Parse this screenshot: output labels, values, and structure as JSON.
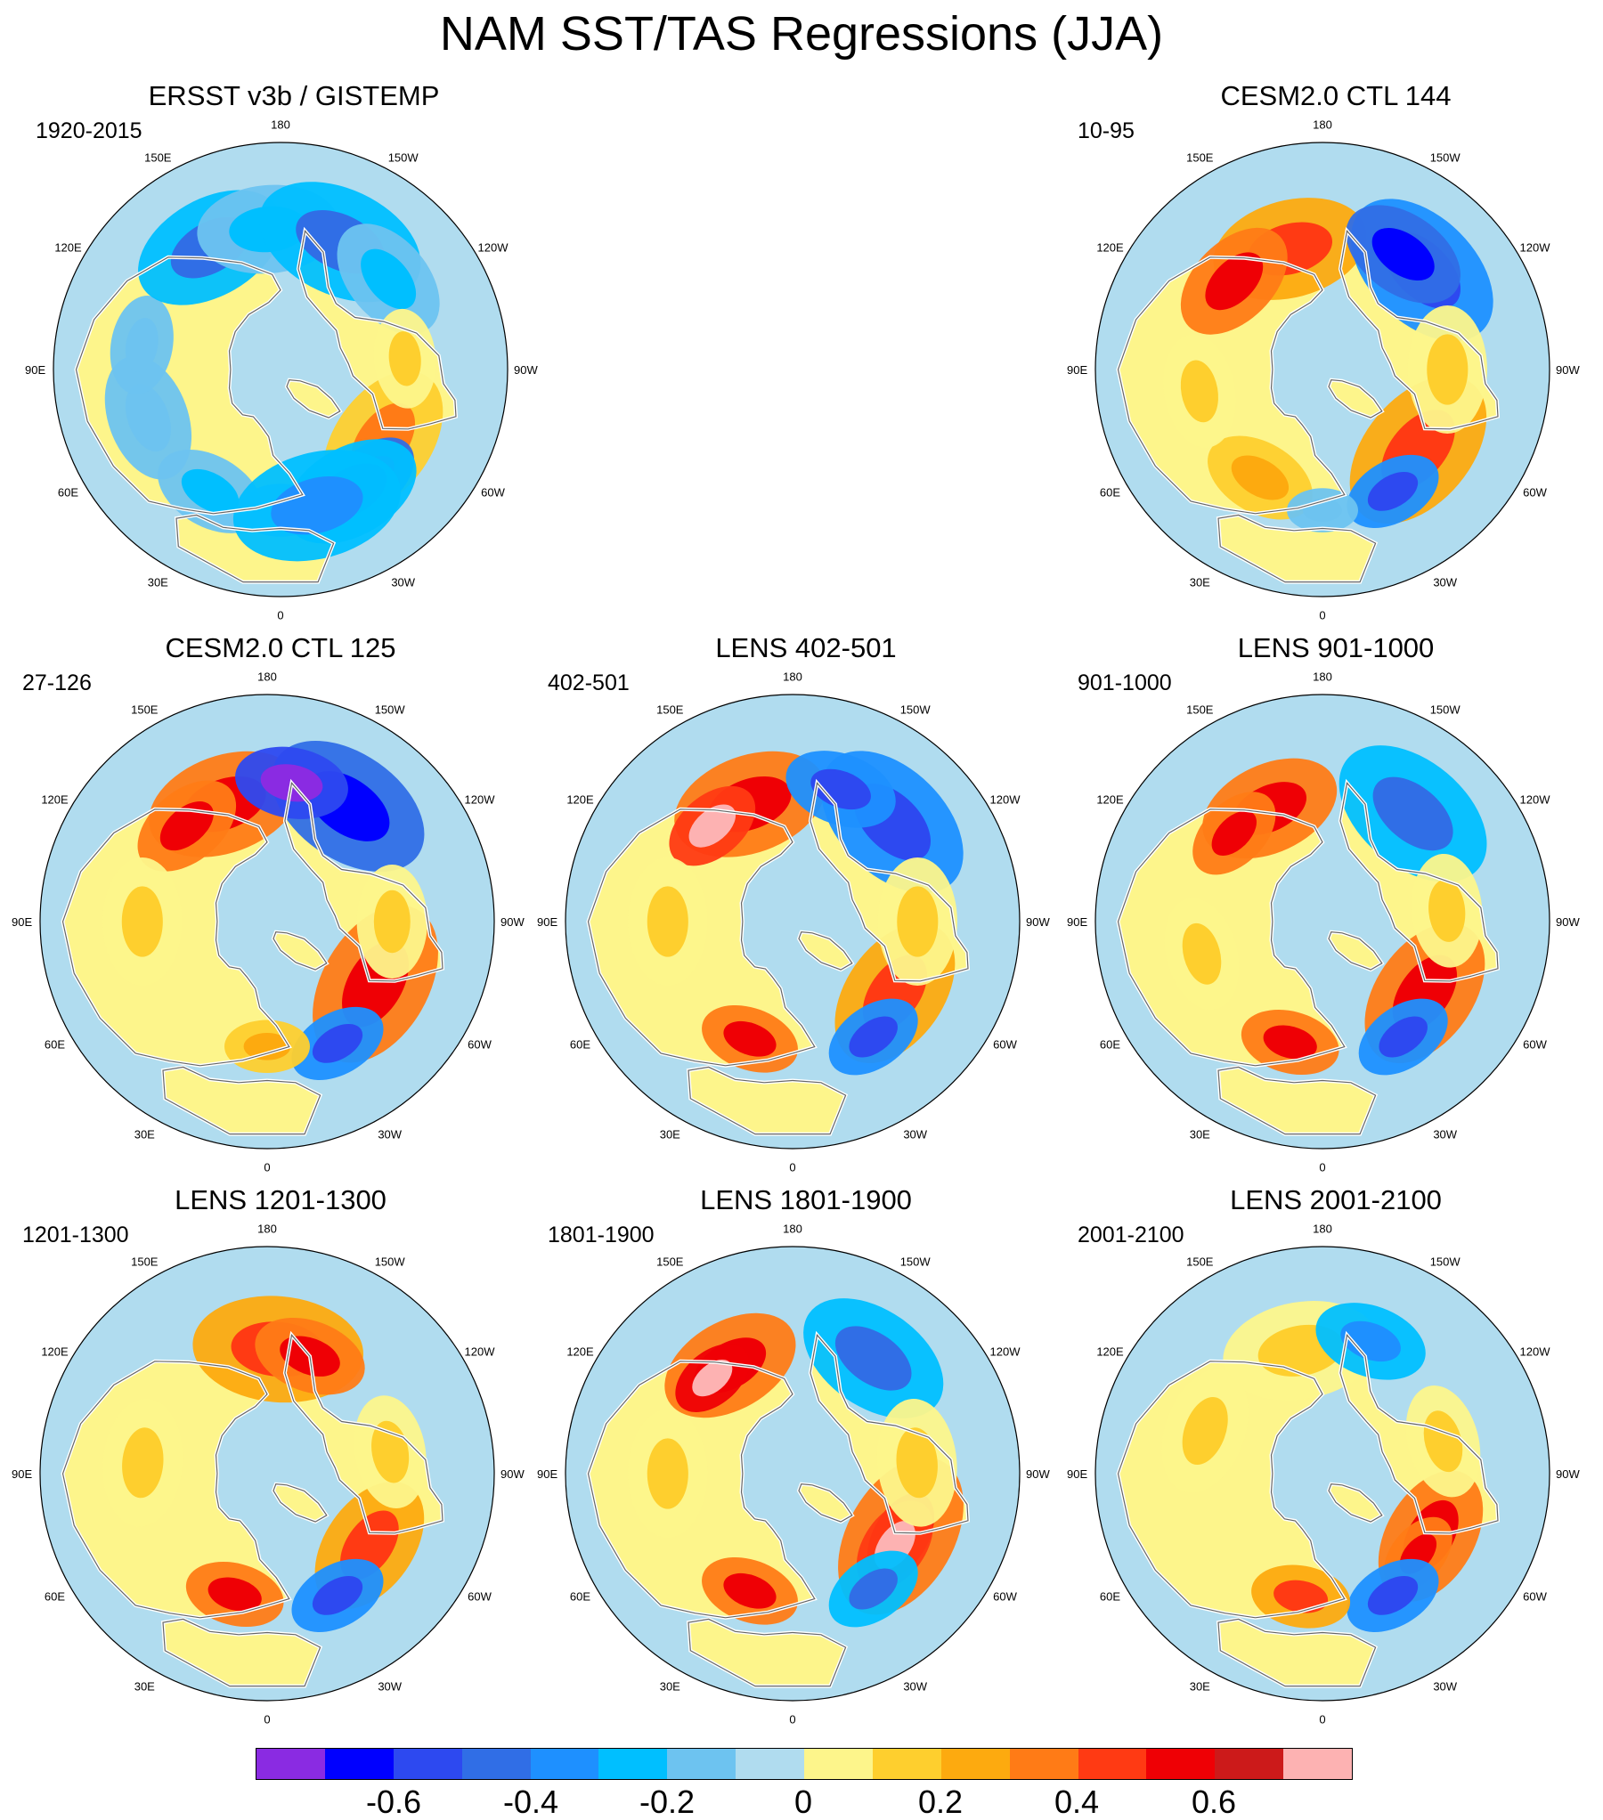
{
  "title": "NAM SST/TAS Regressions (JJA)",
  "lon_labels": [
    "180",
    "150E",
    "120E",
    "90E",
    "60E",
    "30E",
    "0",
    "30W",
    "60W",
    "90W",
    "120W",
    "150W"
  ],
  "panels": [
    {
      "title": "ERSST v3b / GISTEMP",
      "period": "1920-2015",
      "blobs": [
        {
          "lon": 0,
          "r": 30,
          "v": -0.1
        },
        {
          "lon": 30,
          "r": 40,
          "v": -0.15
        },
        {
          "lon": 70,
          "r": 45,
          "v": -0.1
        },
        {
          "lon": 100,
          "r": 35,
          "v": -0.1
        },
        {
          "lon": 150,
          "r": 55,
          "v": -0.25
        },
        {
          "lon": 175,
          "r": 50,
          "v": -0.15
        },
        {
          "lon": 205,
          "r": 60,
          "v": -0.25
        },
        {
          "lon": 230,
          "r": 45,
          "v": -0.15
        },
        {
          "lon": 305,
          "r": 55,
          "v": 0.15
        },
        {
          "lon": 320,
          "r": 35,
          "v": -0.4
        },
        {
          "lon": 265,
          "r": 35,
          "v": 0.05
        },
        {
          "lon": 330,
          "r": 50,
          "v": -0.2
        },
        {
          "lon": 345,
          "r": 60,
          "v": -0.2
        }
      ]
    },
    {
      "title": "CESM2.0 CTL 144",
      "period": "10-95",
      "blobs": [
        {
          "lon": 165,
          "r": 55,
          "v": 0.2
        },
        {
          "lon": 135,
          "r": 45,
          "v": 0.3
        },
        {
          "lon": 225,
          "r": 60,
          "v": -0.3
        },
        {
          "lon": 215,
          "r": 45,
          "v": -0.35
        },
        {
          "lon": 310,
          "r": 60,
          "v": 0.2
        },
        {
          "lon": 330,
          "r": 35,
          "v": -0.3
        },
        {
          "lon": 30,
          "r": 40,
          "v": 0.1
        },
        {
          "lon": 80,
          "r": 40,
          "v": 0.05
        },
        {
          "lon": 270,
          "r": 45,
          "v": 0.05
        },
        {
          "lon": 0,
          "r": 25,
          "v": -0.1
        }
      ]
    },
    {
      "title": "CESM2.0 CTL 125",
      "period": "27-126",
      "blobs": [
        {
          "lon": 160,
          "r": 55,
          "v": 0.25
        },
        {
          "lon": 140,
          "r": 40,
          "v": 0.3
        },
        {
          "lon": 215,
          "r": 60,
          "v": -0.35
        },
        {
          "lon": 190,
          "r": 40,
          "v": -0.45
        },
        {
          "lon": 300,
          "r": 60,
          "v": 0.25
        },
        {
          "lon": 330,
          "r": 35,
          "v": -0.3
        },
        {
          "lon": 0,
          "r": 30,
          "v": 0.1
        },
        {
          "lon": 90,
          "r": 45,
          "v": 0.05
        },
        {
          "lon": 270,
          "r": 40,
          "v": 0.05
        }
      ]
    },
    {
      "title": "LENS 402-501",
      "period": "402-501",
      "blobs": [
        {
          "lon": 160,
          "r": 55,
          "v": 0.25
        },
        {
          "lon": 140,
          "r": 35,
          "v": 0.35
        },
        {
          "lon": 225,
          "r": 60,
          "v": -0.3
        },
        {
          "lon": 200,
          "r": 40,
          "v": -0.3
        },
        {
          "lon": 305,
          "r": 55,
          "v": 0.2
        },
        {
          "lon": 325,
          "r": 35,
          "v": -0.3
        },
        {
          "lon": 20,
          "r": 35,
          "v": 0.25
        },
        {
          "lon": 90,
          "r": 45,
          "v": 0.05
        },
        {
          "lon": 270,
          "r": 45,
          "v": 0.05
        }
      ]
    },
    {
      "title": "LENS 901-1000",
      "period": "901-1000",
      "blobs": [
        {
          "lon": 155,
          "r": 50,
          "v": 0.25
        },
        {
          "lon": 135,
          "r": 35,
          "v": 0.3
        },
        {
          "lon": 220,
          "r": 60,
          "v": -0.25
        },
        {
          "lon": 305,
          "r": 55,
          "v": 0.25
        },
        {
          "lon": 325,
          "r": 35,
          "v": -0.3
        },
        {
          "lon": 15,
          "r": 35,
          "v": 0.3
        },
        {
          "lon": 75,
          "r": 40,
          "v": 0.05
        },
        {
          "lon": 265,
          "r": 40,
          "v": 0.05
        }
      ]
    },
    {
      "title": "LENS 1201-1300",
      "period": "1201-1300",
      "blobs": [
        {
          "lon": 185,
          "r": 60,
          "v": 0.2
        },
        {
          "lon": 200,
          "r": 40,
          "v": 0.25
        },
        {
          "lon": 305,
          "r": 50,
          "v": 0.2
        },
        {
          "lon": 330,
          "r": 35,
          "v": -0.3
        },
        {
          "lon": 15,
          "r": 35,
          "v": 0.3
        },
        {
          "lon": 95,
          "r": 45,
          "v": 0.05
        },
        {
          "lon": 260,
          "r": 40,
          "v": 0.05
        }
      ]
    },
    {
      "title": "LENS 1801-1900",
      "period": "1801-1900",
      "blobs": [
        {
          "lon": 150,
          "r": 50,
          "v": 0.3
        },
        {
          "lon": 140,
          "r": 30,
          "v": 0.45
        },
        {
          "lon": 215,
          "r": 55,
          "v": -0.25
        },
        {
          "lon": 300,
          "r": 60,
          "v": 0.3
        },
        {
          "lon": 305,
          "r": 35,
          "v": 0.35
        },
        {
          "lon": 325,
          "r": 35,
          "v": -0.25
        },
        {
          "lon": 20,
          "r": 35,
          "v": 0.3
        },
        {
          "lon": 90,
          "r": 45,
          "v": 0.05
        },
        {
          "lon": 265,
          "r": 45,
          "v": 0.05
        }
      ]
    },
    {
      "title": "LENS 2001-2100",
      "period": "2001-2100",
      "blobs": [
        {
          "lon": 170,
          "r": 55,
          "v": 0.05
        },
        {
          "lon": 200,
          "r": 40,
          "v": -0.2
        },
        {
          "lon": 300,
          "r": 50,
          "v": 0.25
        },
        {
          "lon": 310,
          "r": 30,
          "v": 0.3
        },
        {
          "lon": 330,
          "r": 35,
          "v": -0.3
        },
        {
          "lon": 10,
          "r": 35,
          "v": 0.2
        },
        {
          "lon": 110,
          "r": 45,
          "v": 0.05
        },
        {
          "lon": 255,
          "r": 40,
          "v": 0.05
        }
      ]
    }
  ],
  "colorbar": {
    "colors": [
      "#8a2be2",
      "#0000ff",
      "#2d49f0",
      "#306ee6",
      "#1e90ff",
      "#00bfff",
      "#6dc3f0",
      "#b0dcef",
      "#fdf58b",
      "#fecf2e",
      "#fdaa0f",
      "#ff7b16",
      "#ff3a13",
      "#ef0005",
      "#cc1a1a",
      "#fdb2b2"
    ],
    "ticks": [
      "-0.6",
      "-0.4",
      "-0.2",
      "0",
      "0.2",
      "0.4",
      "0.6"
    ]
  },
  "legend_colors": {
    "neutral_negative": "#b0dcef",
    "neutral_positive": "#fdf58b",
    "land_edge": "#ffffff",
    "coast": "#666666"
  }
}
